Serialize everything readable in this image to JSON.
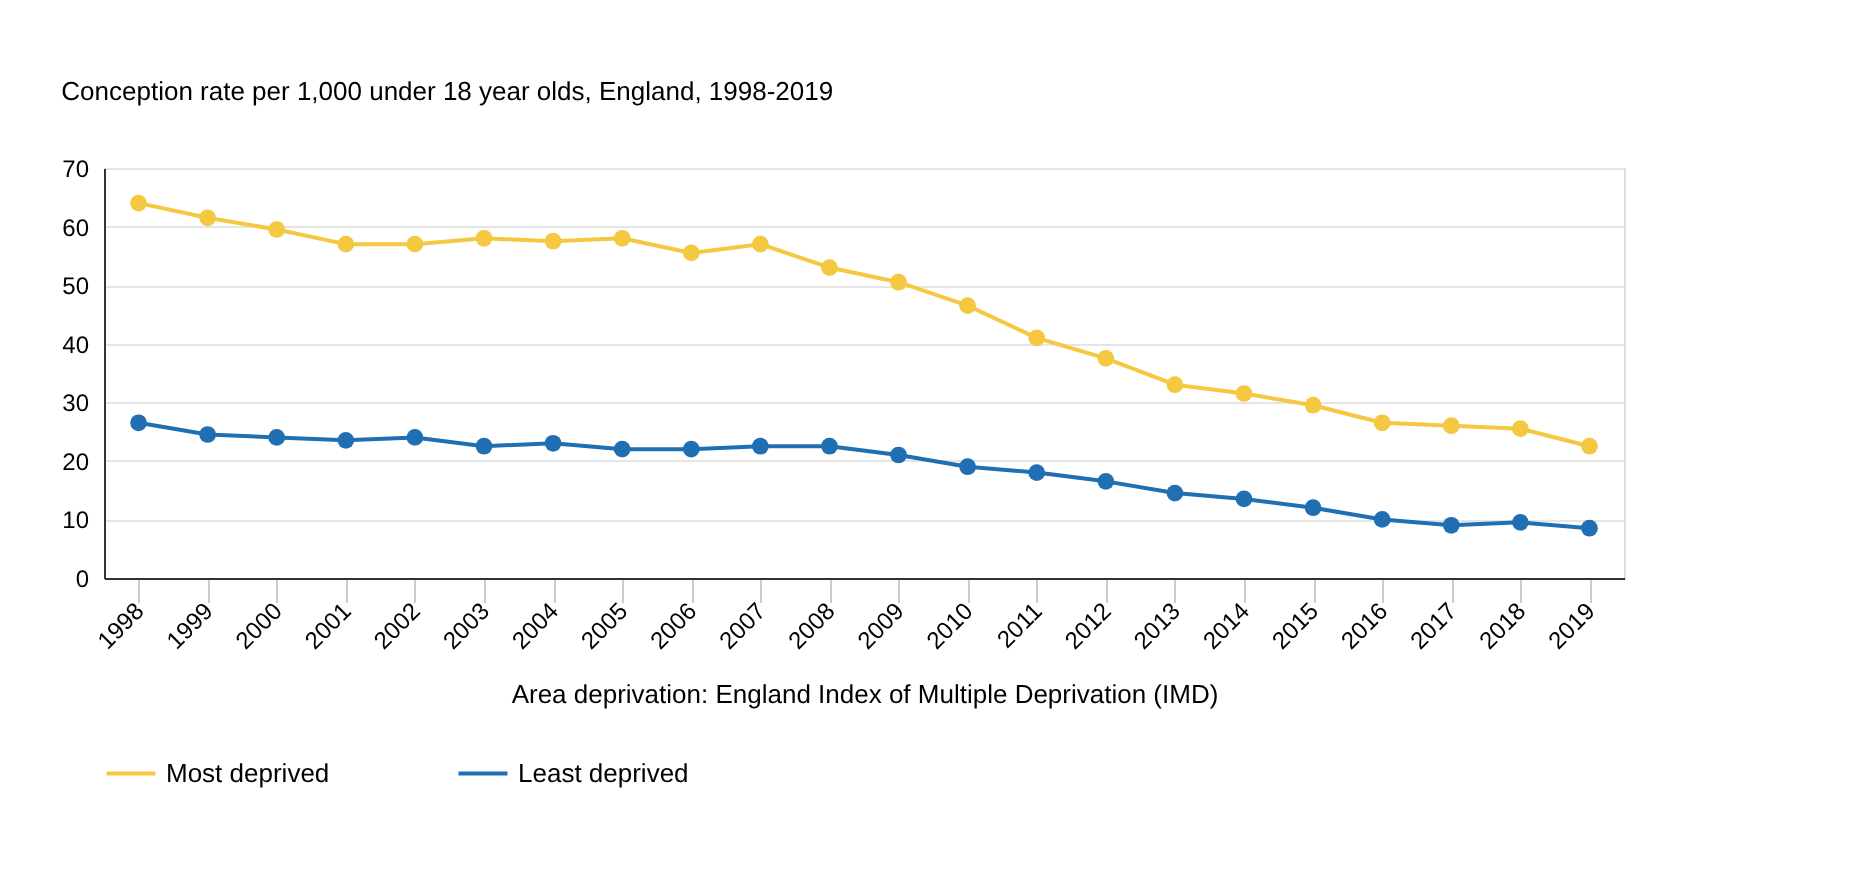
{
  "chart_data": {
    "type": "line",
    "title": "Conception rate per 1,000 under 18 year olds, England, 1998-2019",
    "xlabel": "Area deprivation: England Index of Multiple Deprivation (IMD)",
    "categories": [
      "1998",
      "1999",
      "2000",
      "2001",
      "2002",
      "2003",
      "2004",
      "2005",
      "2006",
      "2007",
      "2008",
      "2009",
      "2010",
      "2011",
      "2012",
      "2013",
      "2014",
      "2015",
      "2016",
      "2017",
      "2018",
      "2019"
    ],
    "series": [
      {
        "name": "Most deprived",
        "color": "#f5c842",
        "values": [
          64,
          61.5,
          59.5,
          57,
          57,
          58,
          57.5,
          58,
          55.5,
          57,
          53,
          50.5,
          46.5,
          41,
          37.5,
          33,
          31.5,
          29.5,
          26.5,
          26,
          25.5,
          22.5
        ]
      },
      {
        "name": "Least deprived",
        "color": "#1f6fb2",
        "values": [
          26.5,
          24.5,
          24,
          23.5,
          24,
          22.5,
          23,
          22,
          22,
          22.5,
          22.5,
          21,
          19,
          18,
          16.5,
          14.5,
          13.5,
          12,
          10,
          9,
          9.5,
          8.5
        ]
      }
    ],
    "ylim": [
      0,
      70
    ],
    "yticks": [
      0,
      10,
      20,
      30,
      40,
      50,
      60,
      70
    ],
    "grid": "y",
    "legend": "bottom",
    "marker": "circle",
    "line_style": "solid"
  }
}
